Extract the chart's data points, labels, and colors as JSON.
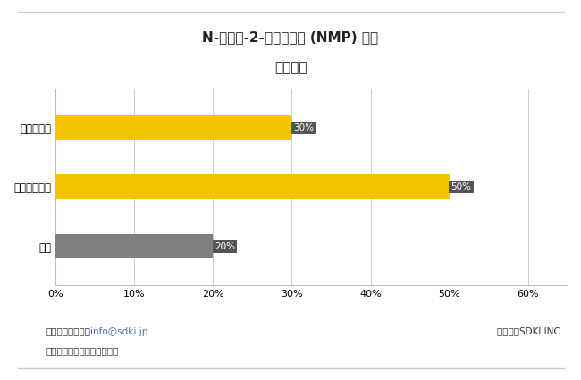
{
  "title_line1": "N-メチル-2-ピロリドン (NMP) 市場",
  "title_line2": "地域貢献",
  "categories": [
    "ヨーロッパ",
    "アジア太平洋",
    "北米"
  ],
  "values": [
    30,
    50,
    20
  ],
  "colors": [
    "#F5C400",
    "#F5C400",
    "#808080"
  ],
  "label_texts": [
    "30%",
    "50%",
    "20%"
  ],
  "xlim": [
    0,
    65
  ],
  "xticks": [
    0,
    10,
    20,
    30,
    40,
    50,
    60
  ],
  "xtick_labels": [
    "0%",
    "10%",
    "20%",
    "30%",
    "40%",
    "50%",
    "60%"
  ],
  "bar_height": 0.42,
  "background_color": "#ffffff",
  "footnote_left1": "詳細については、",
  "footnote_link": "info@sdki.jp",
  "footnote_left2": "にメールをお送りください。",
  "footnote_right": "ソース：SDKI INC.",
  "label_box_color": "#555555",
  "label_text_color": "#ffffff",
  "title_fontsize": 11,
  "tick_label_fontsize": 8,
  "bar_label_fontsize": 7.5,
  "category_fontsize": 8.5,
  "footnote_fontsize": 7.5
}
